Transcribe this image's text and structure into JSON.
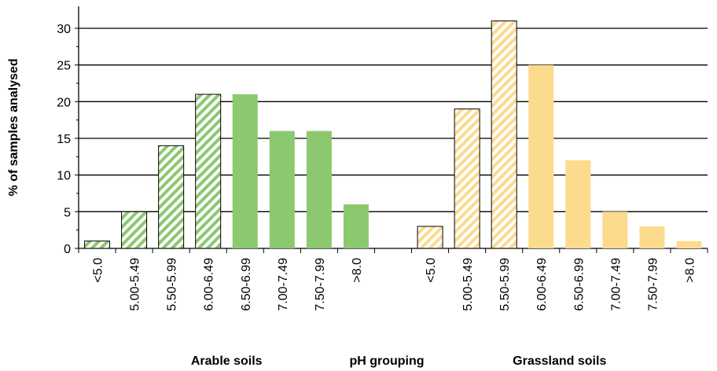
{
  "chart_data": {
    "type": "bar",
    "y_label": "% of samples analysed",
    "x_label": "pH grouping",
    "categories": [
      "<5.0",
      "5.00-5.49",
      "5.50-5.99",
      "6.00-6.49",
      "6.50-6.99",
      "7.00-7.49",
      "7.50-7.99",
      ">8.0",
      null,
      "<5.0",
      "5.00-5.49",
      "5.50-5.99",
      "6.00-6.49",
      "6.50-6.99",
      "7.00-7.49",
      "7.50-7.99",
      ">8.0"
    ],
    "series": [
      {
        "name": "Arable soils",
        "color": "#8cc86f",
        "values": [
          1,
          5,
          14,
          21,
          21,
          16,
          16,
          6,
          null,
          null,
          null,
          null,
          null,
          null,
          null,
          null,
          null
        ],
        "hatched": [
          true,
          true,
          true,
          true,
          false,
          false,
          false,
          false,
          false,
          false,
          false,
          false,
          false,
          false,
          false,
          false,
          false
        ]
      },
      {
        "name": "Grassland soils",
        "color": "#fcda8e",
        "values": [
          null,
          null,
          null,
          null,
          null,
          null,
          null,
          null,
          null,
          3,
          19,
          31,
          25,
          12,
          5,
          3,
          1
        ],
        "hatched": [
          false,
          false,
          false,
          false,
          false,
          false,
          false,
          false,
          false,
          true,
          true,
          true,
          false,
          false,
          false,
          false,
          false
        ]
      }
    ],
    "ylim": [
      0,
      33
    ],
    "yticks": [
      0,
      5,
      10,
      15,
      20,
      25,
      30
    ],
    "grid": true
  }
}
